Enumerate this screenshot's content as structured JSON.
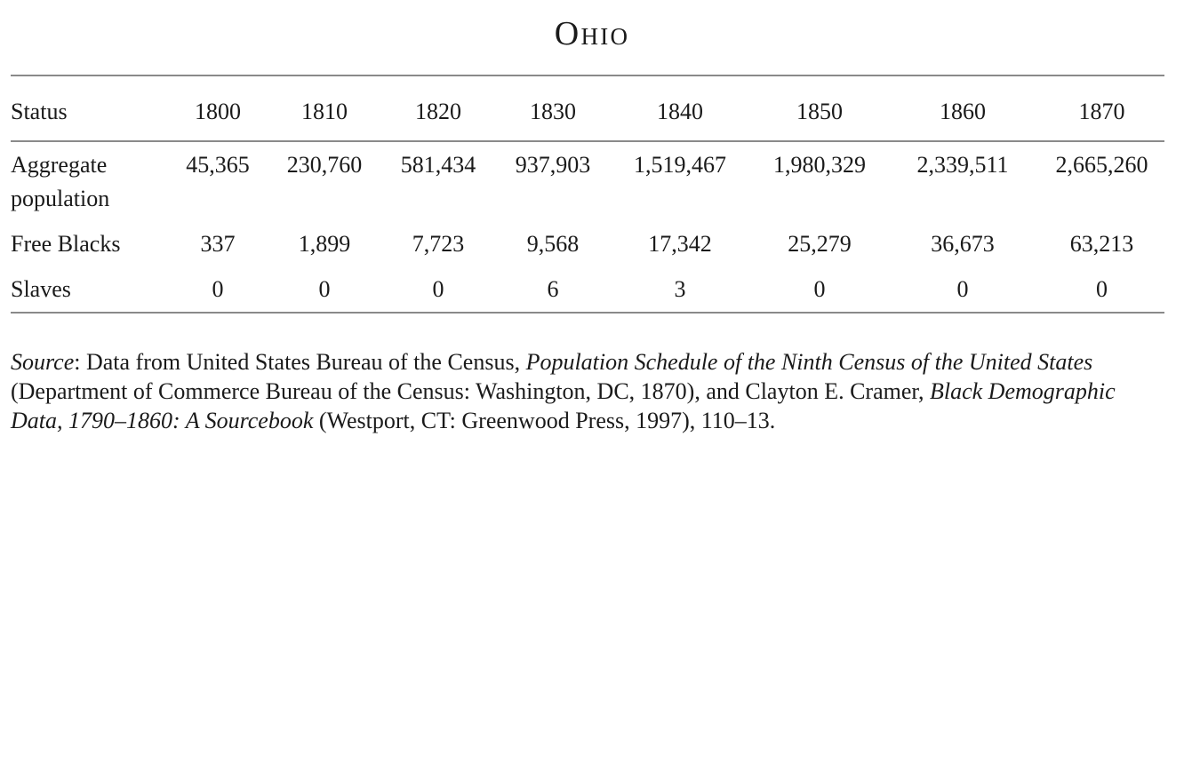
{
  "page": {
    "title": "Ohio",
    "colors": {
      "background": "#ffffff",
      "text": "#1a1a1a",
      "rule": "#8a8a8a"
    }
  },
  "table": {
    "header": [
      "Status",
      "1800",
      "1810",
      "1820",
      "1830",
      "1840",
      "1850",
      "1860",
      "1870"
    ],
    "rows": [
      {
        "label": "Aggregate population",
        "values": [
          "45,365",
          "230,760",
          "581,434",
          "937,903",
          "1,519,467",
          "1,980,329",
          "2,339,511",
          "2,665,260"
        ]
      },
      {
        "label": "Free Blacks",
        "values": [
          "337",
          "1,899",
          "7,723",
          "9,568",
          "17,342",
          "25,279",
          "36,673",
          "63,213"
        ]
      },
      {
        "label": "Slaves",
        "values": [
          "0",
          "0",
          "0",
          "6",
          "3",
          "0",
          "0",
          "0"
        ]
      }
    ]
  },
  "source_note": {
    "segments": [
      {
        "text": "Source",
        "italic": true
      },
      {
        "text": ": Data from United States Bureau of the Census, ",
        "italic": false
      },
      {
        "text": "Population Schedule of the Ninth Census of the United States",
        "italic": true
      },
      {
        "text": " (Department of Commerce Bureau of the Census: Washington, DC, 1870), and Clayton E. Cramer, ",
        "italic": false
      },
      {
        "text": "Black Demographic Data, 1790–1860: A Sourcebook",
        "italic": true
      },
      {
        "text": " (Westport, CT: Greenwood Press, 1997), 110–13.",
        "italic": false
      }
    ]
  },
  "chart_data": {
    "type": "table",
    "title": "Ohio",
    "columns": [
      "Status",
      "1800",
      "1810",
      "1820",
      "1830",
      "1840",
      "1850",
      "1860",
      "1870"
    ],
    "rows": [
      [
        "Aggregate population",
        45365,
        230760,
        581434,
        937903,
        1519467,
        1980329,
        2339511,
        2665260
      ],
      [
        "Free Blacks",
        337,
        1899,
        7723,
        9568,
        17342,
        25279,
        36673,
        63213
      ],
      [
        "Slaves",
        0,
        0,
        0,
        6,
        3,
        0,
        0,
        0
      ]
    ]
  }
}
